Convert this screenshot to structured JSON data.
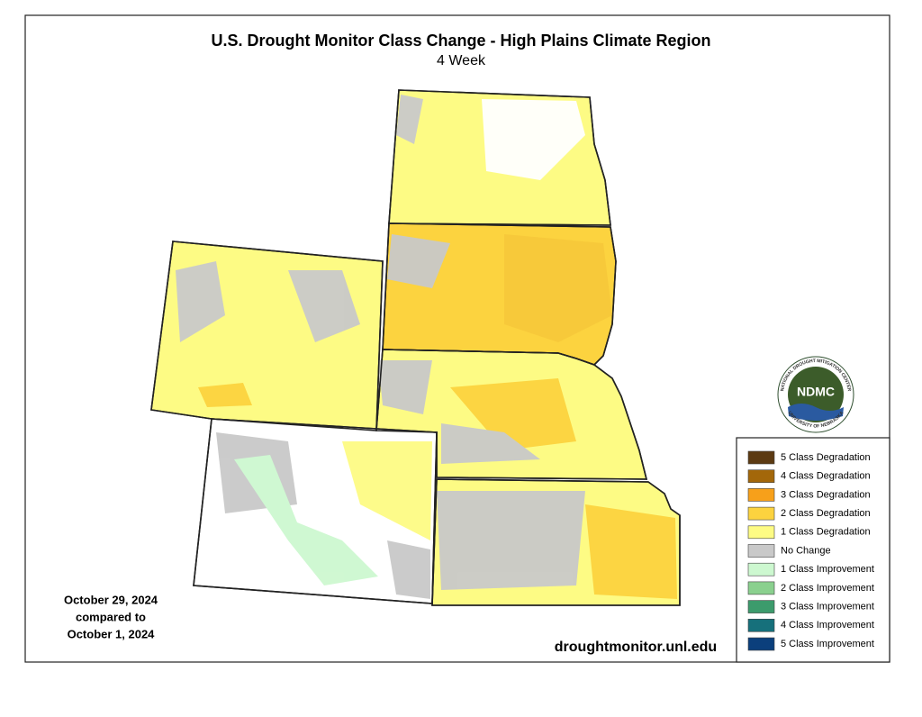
{
  "header": {
    "title": "U.S. Drought Monitor Class Change - High Plains Climate Region",
    "subtitle": "4 Week"
  },
  "dates": {
    "line1": "October 29, 2024",
    "line2": "compared to",
    "line3": "October 1, 2024"
  },
  "source": "droughtmonitor.unl.edu",
  "logo": {
    "name": "NDMC",
    "top_text": "NATIONAL DROUGHT MITIGATION CENTER",
    "bottom_text": "UNIVERSITY OF NEBRASKA"
  },
  "legend": {
    "items": [
      {
        "label": "5 Class Degradation",
        "color": "#5c3a12"
      },
      {
        "label": "4 Class Degradation",
        "color": "#a3670a"
      },
      {
        "label": "3 Class Degradation",
        "color": "#f7a01a"
      },
      {
        "label": "2 Class Degradation",
        "color": "#fcd33f"
      },
      {
        "label": "1 Class Degradation",
        "color": "#fdfb84"
      },
      {
        "label": "No Change",
        "color": "#c9c9c9"
      },
      {
        "label": "1 Class Improvement",
        "color": "#cdf8d0"
      },
      {
        "label": "2 Class Improvement",
        "color": "#8ad08e"
      },
      {
        "label": "3 Class Improvement",
        "color": "#3c9b6c"
      },
      {
        "label": "4 Class Improvement",
        "color": "#16707b"
      },
      {
        "label": "5 Class Improvement",
        "color": "#0b3f7c"
      }
    ]
  }
}
